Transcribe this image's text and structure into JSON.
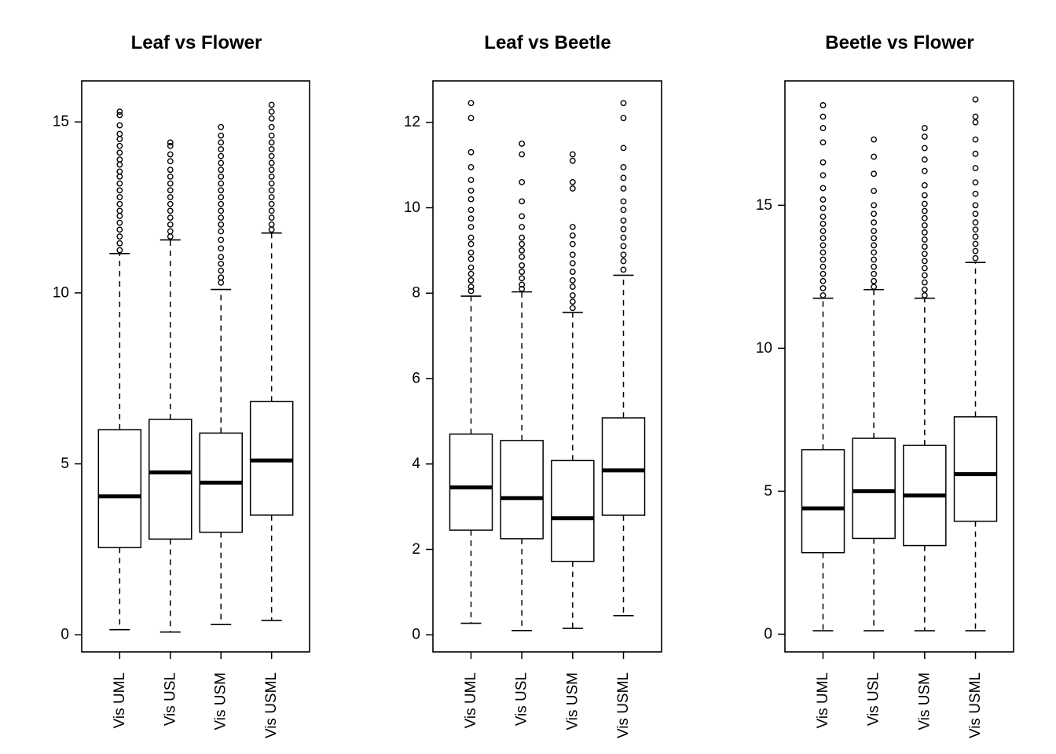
{
  "chart_data": [
    {
      "type": "boxplot",
      "title": "Leaf vs Flower",
      "categories": [
        "Vis UML",
        "Vis USL",
        "Vis USM",
        "Vis USML"
      ],
      "ylim": [
        -0.5,
        16.2
      ],
      "yticks": [
        0,
        5,
        10,
        15
      ],
      "boxes": [
        {
          "whisker_low": 0.15,
          "q1": 2.55,
          "median": 4.05,
          "q3": 6.0,
          "whisker_high": 11.15,
          "outliers": [
            11.25,
            11.45,
            11.65,
            11.85,
            12.05,
            12.25,
            12.4,
            12.6,
            12.8,
            13.0,
            13.2,
            13.4,
            13.55,
            13.75,
            13.9,
            14.1,
            14.3,
            14.5,
            14.65,
            14.9,
            15.2,
            15.3
          ]
        },
        {
          "whisker_low": 0.08,
          "q1": 2.8,
          "median": 4.75,
          "q3": 6.3,
          "whisker_high": 11.55,
          "outliers": [
            11.65,
            11.8,
            12.0,
            12.2,
            12.4,
            12.6,
            12.8,
            13.0,
            13.2,
            13.4,
            13.6,
            13.85,
            14.05,
            14.3,
            14.4
          ]
        },
        {
          "whisker_low": 0.3,
          "q1": 3.0,
          "median": 4.45,
          "q3": 5.9,
          "whisker_high": 10.1,
          "outliers": [
            10.3,
            10.45,
            10.65,
            10.85,
            11.05,
            11.3,
            11.55,
            11.8,
            12.0,
            12.2,
            12.4,
            12.6,
            12.8,
            13.0,
            13.2,
            13.4,
            13.6,
            13.8,
            14.0,
            14.2,
            14.4,
            14.6,
            14.85
          ]
        },
        {
          "whisker_low": 0.42,
          "q1": 3.5,
          "median": 5.1,
          "q3": 6.82,
          "whisker_high": 11.75,
          "outliers": [
            11.85,
            12.0,
            12.2,
            12.4,
            12.6,
            12.8,
            13.0,
            13.2,
            13.4,
            13.6,
            13.8,
            14.0,
            14.2,
            14.4,
            14.6,
            14.85,
            15.1,
            15.3,
            15.5
          ]
        }
      ]
    },
    {
      "type": "boxplot",
      "title": "Leaf vs Beetle",
      "categories": [
        "Vis UML",
        "Vis USL",
        "Vis USM",
        "Vis USML"
      ],
      "ylim": [
        -0.4,
        12.97
      ],
      "yticks": [
        0,
        2,
        4,
        6,
        8,
        10,
        12
      ],
      "boxes": [
        {
          "whisker_low": 0.27,
          "q1": 2.45,
          "median": 3.45,
          "q3": 4.7,
          "whisker_high": 7.93,
          "outliers": [
            8.05,
            8.15,
            8.3,
            8.45,
            8.6,
            8.8,
            8.95,
            9.15,
            9.3,
            9.55,
            9.75,
            9.95,
            10.2,
            10.4,
            10.65,
            10.95,
            11.3,
            12.1,
            12.45
          ]
        },
        {
          "whisker_low": 0.1,
          "q1": 2.25,
          "median": 3.2,
          "q3": 4.55,
          "whisker_high": 8.03,
          "outliers": [
            8.1,
            8.2,
            8.35,
            8.5,
            8.65,
            8.85,
            9.0,
            9.15,
            9.3,
            9.55,
            9.8,
            10.15,
            10.6,
            11.25,
            11.5
          ]
        },
        {
          "whisker_low": 0.15,
          "q1": 1.72,
          "median": 2.73,
          "q3": 4.08,
          "whisker_high": 7.55,
          "outliers": [
            7.65,
            7.8,
            7.95,
            8.15,
            8.3,
            8.5,
            8.7,
            8.9,
            9.15,
            9.35,
            9.55,
            10.45,
            10.6,
            11.1,
            11.25
          ]
        },
        {
          "whisker_low": 0.45,
          "q1": 2.8,
          "median": 3.85,
          "q3": 5.08,
          "whisker_high": 8.42,
          "outliers": [
            8.55,
            8.75,
            8.9,
            9.1,
            9.3,
            9.5,
            9.7,
            9.95,
            10.15,
            10.45,
            10.7,
            10.95,
            11.4,
            12.1,
            12.45
          ]
        }
      ]
    },
    {
      "type": "boxplot",
      "title": "Beetle vs Flower",
      "categories": [
        "Vis UML",
        "Vis USL",
        "Vis USM",
        "Vis USML"
      ],
      "ylim": [
        -0.62,
        19.35
      ],
      "yticks": [
        0,
        5,
        10,
        15
      ],
      "boxes": [
        {
          "whisker_low": 0.12,
          "q1": 2.85,
          "median": 4.4,
          "q3": 6.45,
          "whisker_high": 11.75,
          "outliers": [
            11.85,
            12.1,
            12.35,
            12.6,
            12.85,
            13.1,
            13.35,
            13.6,
            13.85,
            14.1,
            14.35,
            14.6,
            14.9,
            15.2,
            15.6,
            16.05,
            16.5,
            17.2,
            17.7,
            18.1,
            18.5
          ]
        },
        {
          "whisker_low": 0.12,
          "q1": 3.35,
          "median": 5.0,
          "q3": 6.85,
          "whisker_high": 12.05,
          "outliers": [
            12.15,
            12.35,
            12.6,
            12.85,
            13.1,
            13.35,
            13.6,
            13.85,
            14.1,
            14.4,
            14.7,
            15.0,
            15.5,
            16.1,
            16.7,
            17.3
          ]
        },
        {
          "whisker_low": 0.12,
          "q1": 3.1,
          "median": 4.85,
          "q3": 6.6,
          "whisker_high": 11.75,
          "outliers": [
            11.85,
            12.05,
            12.3,
            12.55,
            12.8,
            13.05,
            13.3,
            13.55,
            13.8,
            14.05,
            14.3,
            14.55,
            14.8,
            15.05,
            15.35,
            15.7,
            16.2,
            16.6,
            17.0,
            17.4,
            17.7
          ]
        },
        {
          "whisker_low": 0.12,
          "q1": 3.95,
          "median": 5.6,
          "q3": 7.6,
          "whisker_high": 13.0,
          "outliers": [
            13.15,
            13.4,
            13.65,
            13.9,
            14.15,
            14.4,
            14.7,
            15.0,
            15.4,
            15.8,
            16.3,
            16.8,
            17.3,
            17.9,
            18.1,
            18.7
          ]
        }
      ]
    }
  ]
}
